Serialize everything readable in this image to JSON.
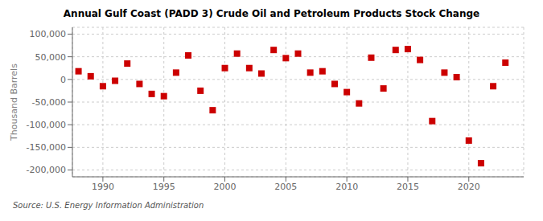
{
  "chart_data": {
    "type": "scatter",
    "title": "Annual Gulf Coast (PADD 3) Crude Oil and Petroleum Products Stock Change",
    "y_label": "Thousand Barrels",
    "annotations": [
      "Source: U.S. Energy Information Administration"
    ],
    "x": [
      1988,
      1989,
      1990,
      1991,
      1992,
      1993,
      1994,
      1995,
      1996,
      1997,
      1998,
      1999,
      2000,
      2001,
      2002,
      2003,
      2004,
      2005,
      2006,
      2007,
      2008,
      2009,
      2010,
      2011,
      2012,
      2013,
      2014,
      2015,
      2016,
      2017,
      2018,
      2019,
      2020,
      2021,
      2022,
      2023
    ],
    "values": [
      18000,
      7000,
      -15000,
      -3000,
      35000,
      -10000,
      -32000,
      -37000,
      15000,
      53000,
      -25000,
      -68000,
      25000,
      57000,
      25000,
      13000,
      65000,
      47000,
      57000,
      15000,
      18000,
      -10000,
      -28000,
      -53000,
      48000,
      -20000,
      65000,
      67000,
      43000,
      -92000,
      15000,
      5000,
      -135000,
      -185000,
      -15000,
      37000
    ],
    "color": "#cc0000",
    "marker": "square",
    "xlim": [
      1987.5,
      2024.5
    ],
    "xticks": [
      1990,
      1995,
      2000,
      2005,
      2010,
      2015,
      2020
    ],
    "ylim": [
      -215000,
      115000
    ],
    "yticks": [
      {
        "value": -200000,
        "label": "-200,000"
      },
      {
        "value": -150000,
        "label": "-150,000"
      },
      {
        "value": -100000,
        "label": "-100,000"
      },
      {
        "value": -50000,
        "label": "-50,000"
      },
      0,
      {
        "value": 50000,
        "label": "50,000"
      },
      {
        "value": 100000,
        "label": "100,000"
      }
    ],
    "grid": true
  }
}
